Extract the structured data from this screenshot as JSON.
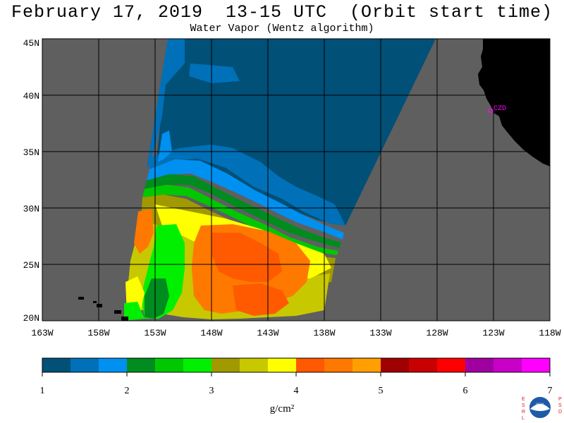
{
  "title": "February 17, 2019  13-15 UTC  (Orbit start time)",
  "subtitle": "Water Vapor (Wentz algorithm)",
  "lat_labels": [
    "45N",
    "40N",
    "35N",
    "30N",
    "25N",
    "20N"
  ],
  "lon_labels": [
    "163W",
    "158W",
    "153W",
    "148W",
    "143W",
    "138W",
    "133W",
    "128W",
    "123W",
    "118W"
  ],
  "station_label": "CZD",
  "colorbar": {
    "ticks": [
      "1",
      "2",
      "3",
      "4",
      "5",
      "6",
      "7"
    ],
    "unit": "g/cm²",
    "colors": [
      "#005078",
      "#0070b8",
      "#0090f0",
      "#008c1e",
      "#00c800",
      "#00f000",
      "#a09a00",
      "#c8c800",
      "#ffff00",
      "#ff5a00",
      "#ff7800",
      "#ffa000",
      "#a00000",
      "#c80000",
      "#ff0000",
      "#a000a0",
      "#c800c8",
      "#ff00ff"
    ]
  },
  "colors": {
    "land": "#000000",
    "ocean_nodata": "#5f5f5f",
    "grid": "#000000",
    "station": "#ff00ff"
  },
  "logo_text": {
    "left": "ESRL",
    "right": "PSD",
    "center": "NOAA"
  }
}
